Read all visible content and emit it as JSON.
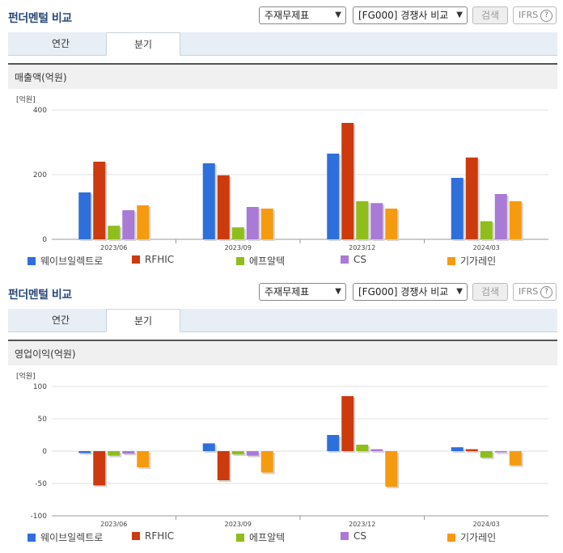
{
  "colors": [
    "#2f6fdc",
    "#cc3a0e",
    "#8fbe1c",
    "#a97ad6",
    "#f59b0f"
  ],
  "panels": [
    {
      "title": "펀더멘털 비교",
      "select1": "주재무제표",
      "select2": "[FG000] 경쟁사 비교",
      "search_label": "검색",
      "ifrs_label": "IFRS",
      "ifrs_help": "?",
      "tabs": [
        "연간",
        "분기"
      ],
      "active_tab": 1,
      "chart_header": "매출액(억원)"
    },
    {
      "title": "펀더멘털 비교",
      "select1": "주재무제표",
      "select2": "[FG000] 경쟁사 비교",
      "search_label": "검색",
      "ifrs_label": "IFRS",
      "ifrs_help": "?",
      "tabs": [
        "연간",
        "분기"
      ],
      "active_tab": 1,
      "chart_header": "영업이익(억원)"
    }
  ],
  "chart_data": [
    {
      "type": "bar",
      "unit_label": "[억원]",
      "categories": [
        "2023/06",
        "2023/09",
        "2023/12",
        "2024/03"
      ],
      "ylim": [
        0,
        400
      ],
      "yticks": [
        0,
        200,
        400
      ],
      "grid": true,
      "legend_position": "bottom",
      "series": [
        {
          "name": "웨이브일렉트로",
          "values": [
            145,
            235,
            265,
            190
          ]
        },
        {
          "name": "RFHIC",
          "values": [
            240,
            198,
            360,
            253
          ]
        },
        {
          "name": "에프알텍",
          "values": [
            42,
            37,
            118,
            56
          ]
        },
        {
          "name": "CS",
          "values": [
            90,
            100,
            112,
            140
          ]
        },
        {
          "name": "기가레인",
          "values": [
            105,
            95,
            95,
            118
          ]
        }
      ]
    },
    {
      "type": "bar",
      "unit_label": "[억원]",
      "categories": [
        "2023/06",
        "2023/09",
        "2023/12",
        "2024/03"
      ],
      "ylim": [
        -100,
        100
      ],
      "yticks": [
        -100,
        -50,
        0,
        50,
        100
      ],
      "grid": true,
      "legend_position": "bottom",
      "series": [
        {
          "name": "웨이브일렉트로",
          "values": [
            -3,
            12,
            25,
            6
          ]
        },
        {
          "name": "RFHIC",
          "values": [
            -53,
            -45,
            85,
            3
          ]
        },
        {
          "name": "에프알텍",
          "values": [
            -7,
            -5,
            10,
            -10
          ]
        },
        {
          "name": "CS",
          "values": [
            -4,
            -7,
            3,
            -2
          ]
        },
        {
          "name": "기가레인",
          "values": [
            -25,
            -33,
            -55,
            -22
          ]
        }
      ]
    }
  ]
}
